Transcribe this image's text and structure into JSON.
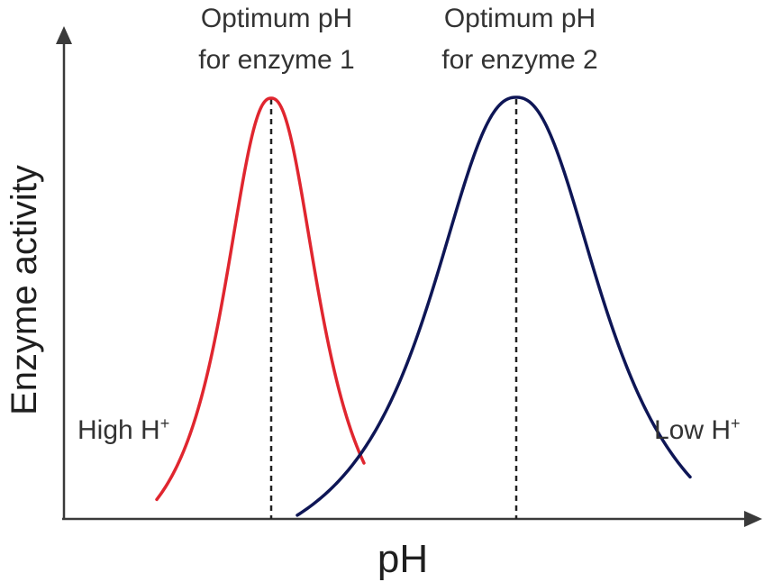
{
  "colors": {
    "axis": "#3a3a3a",
    "enzyme1": "#e0262f",
    "enzyme2": "#0e1656",
    "text": "#333333"
  },
  "labels": {
    "optimum1_line1": "Optimum pH",
    "optimum1_line2": "for enzyme 1",
    "optimum2_line1": "Optimum pH",
    "optimum2_line2": "for enzyme 2",
    "high": "High H",
    "low": "Low H",
    "superscript": "+",
    "x_axis": "pH",
    "y_axis": "Enzyme activity"
  }
}
